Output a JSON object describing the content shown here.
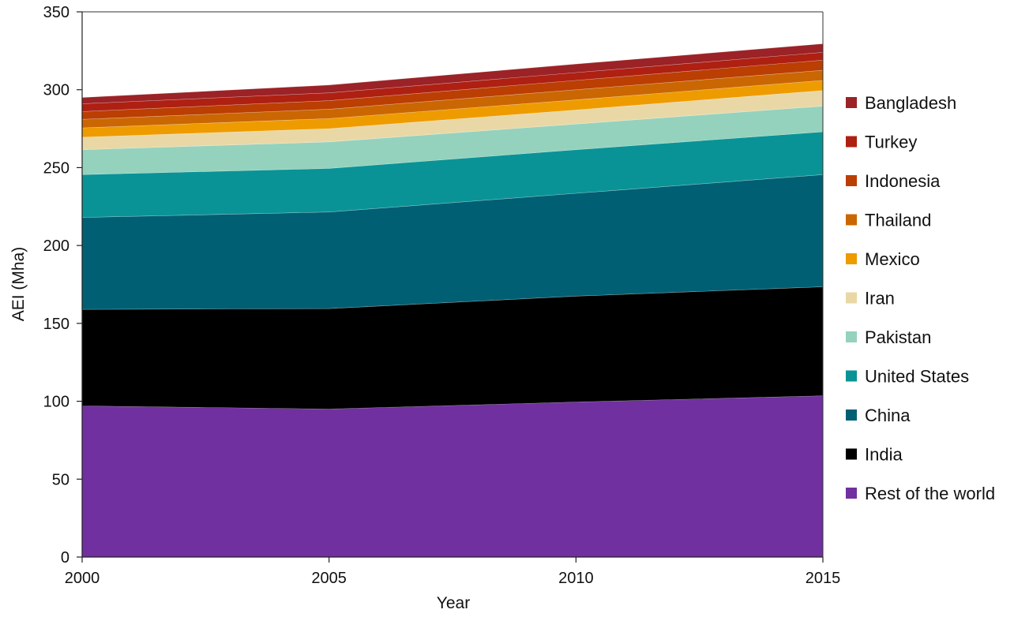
{
  "chart_data": {
    "type": "area",
    "stacked": true,
    "title": "",
    "xlabel": "Year",
    "ylabel": "AEI (Mha)",
    "x": [
      2000,
      2005,
      2010,
      2015
    ],
    "x_ticks": [
      "2000",
      "2005",
      "2010",
      "2015"
    ],
    "xlim": [
      2000,
      2015
    ],
    "y_ticks": [
      "0",
      "50",
      "100",
      "150",
      "200",
      "250",
      "300",
      "350"
    ],
    "ylim": [
      0,
      350
    ],
    "grid": false,
    "legend_placement": "right",
    "series": [
      {
        "name": "Rest of the world",
        "color": "#7030A0",
        "values": [
          97,
          95,
          99.5,
          103.5
        ]
      },
      {
        "name": "India",
        "color": "#000000",
        "values": [
          62,
          64.5,
          68,
          70
        ]
      },
      {
        "name": "China",
        "color": "#005F73",
        "values": [
          59,
          62,
          66,
          72
        ]
      },
      {
        "name": "United States",
        "color": "#0A9396",
        "values": [
          27.5,
          28,
          28,
          27.5
        ]
      },
      {
        "name": "Pakistan",
        "color": "#94D2BD",
        "values": [
          16,
          17,
          16.5,
          16.5
        ]
      },
      {
        "name": "Iran",
        "color": "#E9D8A6",
        "values": [
          8,
          8.5,
          9,
          10
        ]
      },
      {
        "name": "Mexico",
        "color": "#EE9B00",
        "values": [
          6,
          6.5,
          6.5,
          6.5
        ]
      },
      {
        "name": "Thailand",
        "color": "#CA6702",
        "values": [
          5.5,
          6,
          6.5,
          6.5
        ]
      },
      {
        "name": "Indonesia",
        "color": "#BB3E03",
        "values": [
          5,
          5.5,
          6,
          6.5
        ]
      },
      {
        "name": "Turkey",
        "color": "#AE2012",
        "values": [
          5,
          5,
          5,
          5
        ]
      },
      {
        "name": "Bangladesh",
        "color": "#9B2226",
        "values": [
          4,
          5,
          5.5,
          5.5
        ]
      }
    ]
  }
}
